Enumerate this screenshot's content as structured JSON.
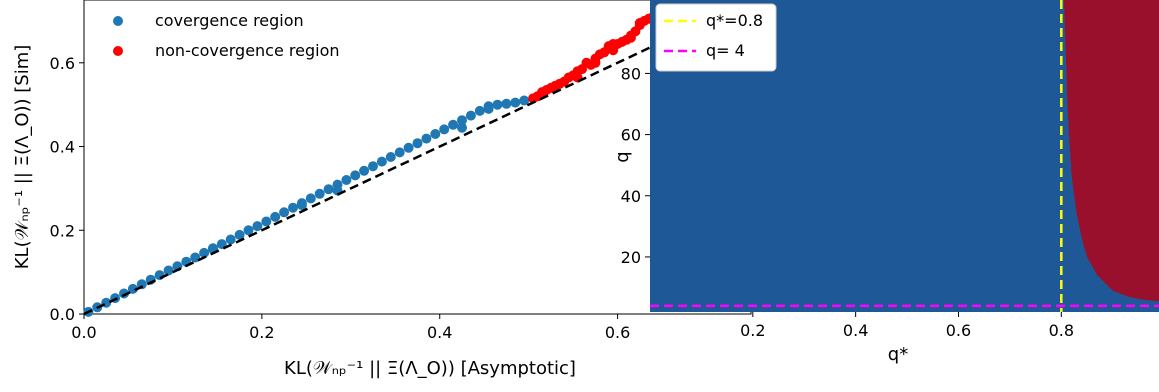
{
  "chart_data": [
    {
      "type": "scatter",
      "xlabel": "KL(𝒲ₙₚ⁻¹ || Ξ(Λ_O))   [Asymptotic]",
      "ylabel": "KL(𝒲ₙₚ⁻¹ || Ξ(Λ_O))   [Sim]",
      "xlim": [
        0.0,
        0.75
      ],
      "ylim": [
        0.0,
        0.75
      ],
      "xticks": [
        "0.0",
        "0.2",
        "0.4",
        "0.6"
      ],
      "yticks": [
        "0.0",
        "0.2",
        "0.4",
        "0.6"
      ],
      "grid": false,
      "legend_position": "top-left",
      "reference_line": {
        "style": "dashed",
        "color": "#000000",
        "from": [
          0.0,
          0.0
        ],
        "to": [
          0.75,
          0.75
        ]
      },
      "series": [
        {
          "name": "covergence region",
          "color": "#1f77b4",
          "x": [
            0.005,
            0.015,
            0.025,
            0.035,
            0.045,
            0.055,
            0.065,
            0.075,
            0.085,
            0.095,
            0.105,
            0.115,
            0.125,
            0.135,
            0.145,
            0.155,
            0.165,
            0.175,
            0.185,
            0.195,
            0.205,
            0.215,
            0.225,
            0.235,
            0.245,
            0.255,
            0.265,
            0.275,
            0.285,
            0.295,
            0.305,
            0.315,
            0.325,
            0.335,
            0.345,
            0.355,
            0.365,
            0.375,
            0.385,
            0.395,
            0.405,
            0.415,
            0.425,
            0.435,
            0.445,
            0.455,
            0.465,
            0.475,
            0.485,
            0.495,
            0.145,
            0.245,
            0.285,
            0.425,
            0.455
          ],
          "y": [
            0.005,
            0.016,
            0.027,
            0.038,
            0.049,
            0.06,
            0.071,
            0.082,
            0.093,
            0.104,
            0.114,
            0.125,
            0.135,
            0.146,
            0.157,
            0.167,
            0.178,
            0.189,
            0.2,
            0.21,
            0.221,
            0.232,
            0.243,
            0.254,
            0.265,
            0.276,
            0.287,
            0.298,
            0.309,
            0.32,
            0.331,
            0.342,
            0.353,
            0.364,
            0.375,
            0.386,
            0.397,
            0.408,
            0.419,
            0.43,
            0.441,
            0.452,
            0.463,
            0.474,
            0.485,
            0.496,
            0.5,
            0.502,
            0.505,
            0.51,
            0.155,
            0.26,
            0.295,
            0.445,
            0.49
          ]
        },
        {
          "name": "non-covergence region",
          "color": "#ff0000",
          "x": [
            0.505,
            0.51,
            0.515,
            0.52,
            0.525,
            0.53,
            0.535,
            0.54,
            0.545,
            0.55,
            0.555,
            0.56,
            0.565,
            0.57,
            0.575,
            0.58,
            0.585,
            0.59,
            0.595,
            0.6,
            0.605,
            0.61,
            0.615,
            0.62,
            0.625,
            0.63,
            0.635,
            0.64,
            0.555,
            0.575,
            0.595,
            0.615,
            0.625
          ],
          "y": [
            0.515,
            0.52,
            0.53,
            0.535,
            0.54,
            0.545,
            0.55,
            0.555,
            0.565,
            0.57,
            0.58,
            0.585,
            0.6,
            0.595,
            0.61,
            0.62,
            0.625,
            0.64,
            0.63,
            0.645,
            0.65,
            0.655,
            0.665,
            0.675,
            0.69,
            0.7,
            0.705,
            0.71,
            0.565,
            0.6,
            0.645,
            0.66,
            0.695
          ]
        }
      ]
    },
    {
      "type": "heatmap",
      "xlabel": "q*",
      "ylabel": "q",
      "xlim": [
        0.0,
        0.99
      ],
      "ylim": [
        2,
        104
      ],
      "xticks": [
        "0.2",
        "0.4",
        "0.6",
        "0.8"
      ],
      "yticks": [
        "20",
        "40",
        "60",
        "80"
      ],
      "grid": false,
      "legend_position": "top-left",
      "regions": [
        {
          "name": "convergence",
          "color": "#1f5896"
        },
        {
          "name": "non-convergence",
          "color": "#99102c"
        }
      ],
      "boundary": {
        "q_star": [
          0.805,
          0.81,
          0.812,
          0.815,
          0.818,
          0.82,
          0.825,
          0.83,
          0.84,
          0.85,
          0.87,
          0.9,
          0.93,
          0.96,
          0.99
        ],
        "q": [
          104,
          80,
          70,
          60,
          52,
          47,
          40,
          34,
          26,
          20,
          14,
          9,
          7,
          6,
          5.5
        ]
      },
      "series": [
        {
          "name": "q*=0.8",
          "color": "#ffff00",
          "style": "dashed",
          "orientation": "vertical",
          "value": 0.8
        },
        {
          "name": "q= 4",
          "color": "#ff00ff",
          "style": "dashed",
          "orientation": "horizontal",
          "value": 4
        }
      ]
    }
  ]
}
